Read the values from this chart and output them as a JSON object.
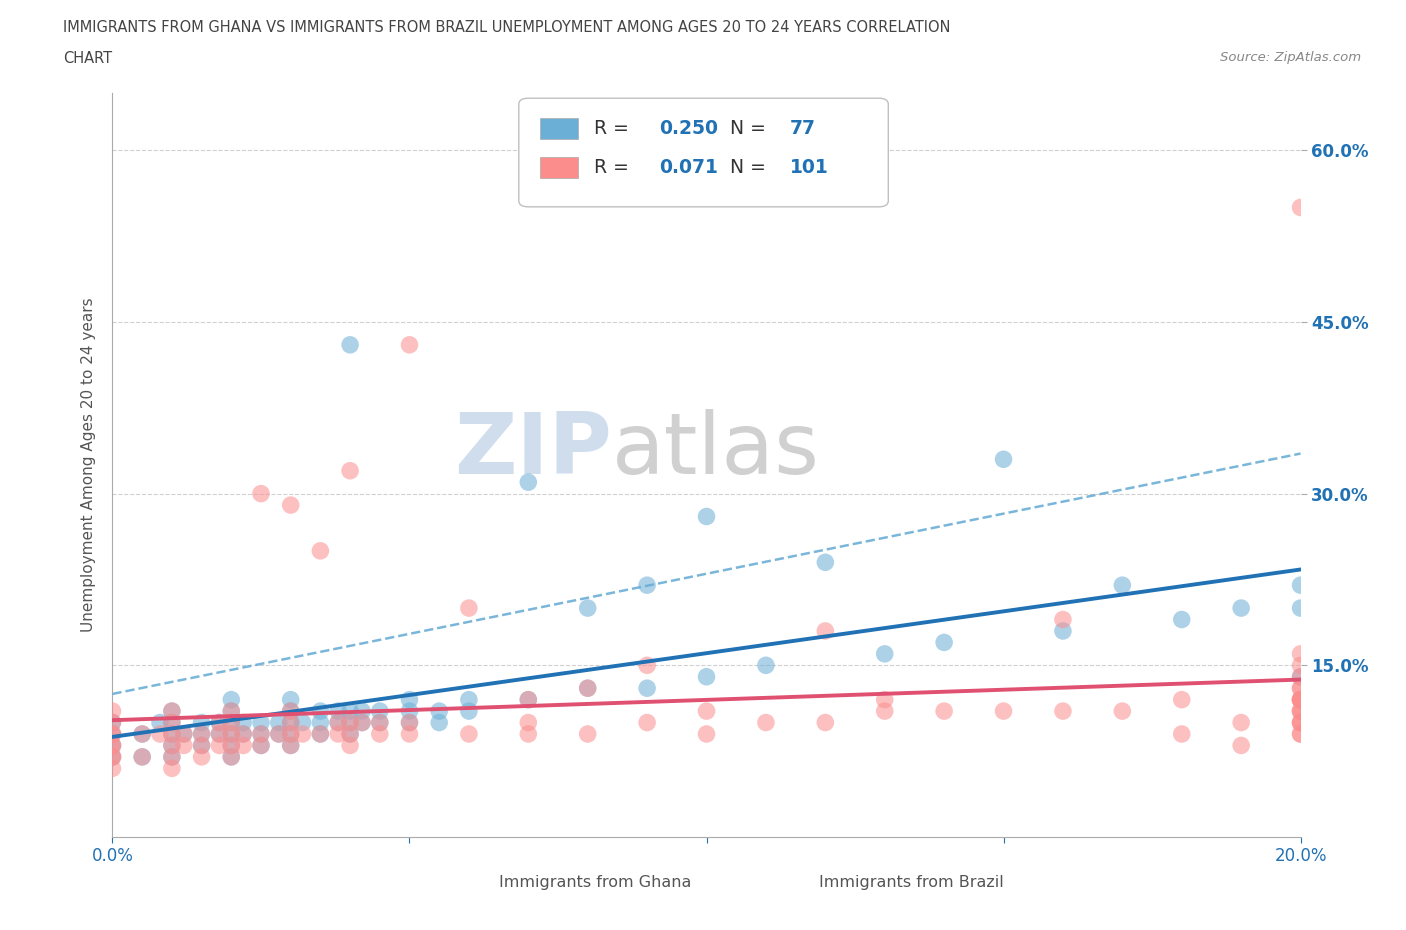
{
  "title_line1": "IMMIGRANTS FROM GHANA VS IMMIGRANTS FROM BRAZIL UNEMPLOYMENT AMONG AGES 20 TO 24 YEARS CORRELATION",
  "title_line2": "CHART",
  "source": "Source: ZipAtlas.com",
  "ylabel": "Unemployment Among Ages 20 to 24 years",
  "xlim": [
    0.0,
    0.2
  ],
  "ylim": [
    0.0,
    0.65
  ],
  "xtick_positions": [
    0.0,
    0.05,
    0.1,
    0.15,
    0.2
  ],
  "xtick_labels": [
    "0.0%",
    "",
    "",
    "",
    "20.0%"
  ],
  "ytick_positions": [
    0.15,
    0.3,
    0.45,
    0.6
  ],
  "ytick_labels": [
    "15.0%",
    "30.0%",
    "45.0%",
    "60.0%"
  ],
  "ghana_color": "#6baed6",
  "brazil_color": "#fc8d8d",
  "ghana_R": 0.25,
  "ghana_N": 77,
  "brazil_R": 0.071,
  "brazil_N": 101,
  "ghana_label": "Immigrants from Ghana",
  "brazil_label": "Immigrants from Brazil",
  "legend_r_color": "#2171b5",
  "regression_ghana_color": "#2171b5",
  "regression_brazil_color": "#e05070",
  "dashed_color": "#6baed6",
  "background_color": "#ffffff",
  "grid_color": "#d0d0d0",
  "watermark": "ZIPatlas",
  "ghana_scatter_x": [
    0.0,
    0.0,
    0.0,
    0.0,
    0.005,
    0.005,
    0.008,
    0.01,
    0.01,
    0.01,
    0.01,
    0.01,
    0.012,
    0.015,
    0.015,
    0.015,
    0.018,
    0.018,
    0.02,
    0.02,
    0.02,
    0.02,
    0.02,
    0.02,
    0.022,
    0.022,
    0.025,
    0.025,
    0.025,
    0.028,
    0.028,
    0.03,
    0.03,
    0.03,
    0.03,
    0.03,
    0.032,
    0.035,
    0.035,
    0.035,
    0.038,
    0.038,
    0.04,
    0.04,
    0.04,
    0.04,
    0.042,
    0.042,
    0.045,
    0.045,
    0.05,
    0.05,
    0.05,
    0.055,
    0.055,
    0.06,
    0.06,
    0.07,
    0.07,
    0.08,
    0.08,
    0.09,
    0.09,
    0.1,
    0.1,
    0.11,
    0.12,
    0.13,
    0.14,
    0.15,
    0.16,
    0.17,
    0.18,
    0.19,
    0.2,
    0.2,
    0.2
  ],
  "ghana_scatter_y": [
    0.07,
    0.08,
    0.09,
    0.1,
    0.07,
    0.09,
    0.1,
    0.07,
    0.08,
    0.09,
    0.1,
    0.11,
    0.09,
    0.08,
    0.09,
    0.1,
    0.09,
    0.1,
    0.07,
    0.08,
    0.09,
    0.1,
    0.11,
    0.12,
    0.09,
    0.1,
    0.08,
    0.09,
    0.1,
    0.09,
    0.1,
    0.08,
    0.09,
    0.1,
    0.11,
    0.12,
    0.1,
    0.09,
    0.1,
    0.11,
    0.1,
    0.11,
    0.09,
    0.1,
    0.11,
    0.43,
    0.1,
    0.11,
    0.1,
    0.11,
    0.1,
    0.11,
    0.12,
    0.1,
    0.11,
    0.11,
    0.12,
    0.12,
    0.31,
    0.13,
    0.2,
    0.13,
    0.22,
    0.14,
    0.28,
    0.15,
    0.24,
    0.16,
    0.17,
    0.33,
    0.18,
    0.22,
    0.19,
    0.2,
    0.14,
    0.2,
    0.22
  ],
  "brazil_scatter_x": [
    0.0,
    0.0,
    0.0,
    0.0,
    0.0,
    0.0,
    0.0,
    0.0,
    0.0,
    0.005,
    0.005,
    0.008,
    0.01,
    0.01,
    0.01,
    0.01,
    0.01,
    0.01,
    0.012,
    0.012,
    0.015,
    0.015,
    0.015,
    0.018,
    0.018,
    0.018,
    0.02,
    0.02,
    0.02,
    0.02,
    0.02,
    0.022,
    0.022,
    0.025,
    0.025,
    0.025,
    0.028,
    0.03,
    0.03,
    0.03,
    0.03,
    0.03,
    0.032,
    0.035,
    0.035,
    0.038,
    0.038,
    0.04,
    0.04,
    0.04,
    0.04,
    0.042,
    0.045,
    0.045,
    0.05,
    0.05,
    0.05,
    0.06,
    0.06,
    0.07,
    0.07,
    0.07,
    0.08,
    0.08,
    0.09,
    0.09,
    0.1,
    0.1,
    0.11,
    0.12,
    0.12,
    0.13,
    0.13,
    0.14,
    0.15,
    0.16,
    0.16,
    0.17,
    0.18,
    0.18,
    0.19,
    0.19,
    0.2,
    0.2,
    0.2,
    0.2,
    0.2,
    0.2,
    0.2,
    0.2,
    0.2,
    0.2,
    0.2,
    0.2,
    0.2,
    0.2,
    0.2,
    0.2,
    0.2,
    0.2,
    0.2
  ],
  "brazil_scatter_y": [
    0.06,
    0.07,
    0.07,
    0.08,
    0.08,
    0.09,
    0.09,
    0.1,
    0.11,
    0.07,
    0.09,
    0.09,
    0.06,
    0.07,
    0.08,
    0.09,
    0.1,
    0.11,
    0.08,
    0.09,
    0.07,
    0.08,
    0.09,
    0.08,
    0.09,
    0.1,
    0.07,
    0.08,
    0.09,
    0.1,
    0.11,
    0.08,
    0.09,
    0.08,
    0.09,
    0.3,
    0.09,
    0.08,
    0.09,
    0.1,
    0.11,
    0.29,
    0.09,
    0.09,
    0.25,
    0.09,
    0.1,
    0.08,
    0.09,
    0.1,
    0.32,
    0.1,
    0.09,
    0.1,
    0.09,
    0.1,
    0.43,
    0.09,
    0.2,
    0.09,
    0.1,
    0.12,
    0.09,
    0.13,
    0.1,
    0.15,
    0.09,
    0.11,
    0.1,
    0.1,
    0.18,
    0.11,
    0.12,
    0.11,
    0.11,
    0.11,
    0.19,
    0.11,
    0.09,
    0.12,
    0.08,
    0.1,
    0.1,
    0.11,
    0.12,
    0.13,
    0.14,
    0.15,
    0.16,
    0.09,
    0.1,
    0.11,
    0.12,
    0.55,
    0.13,
    0.11,
    0.12,
    0.1,
    0.12,
    0.09,
    0.12
  ]
}
